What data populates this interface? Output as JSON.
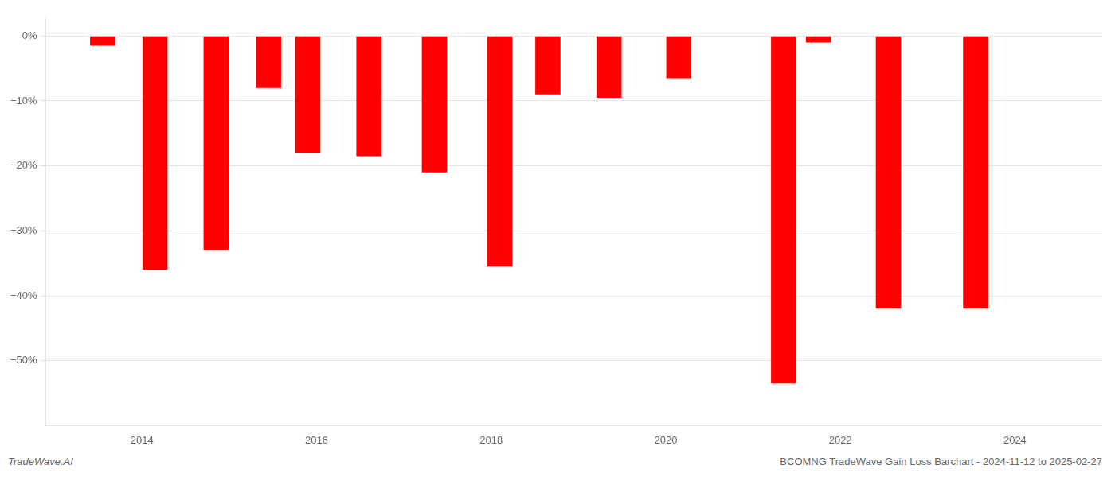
{
  "chart_data": {
    "type": "bar",
    "x": [
      2013.55,
      2014.15,
      2014.85,
      2015.45,
      2015.9,
      2016.6,
      2017.35,
      2018.1,
      2018.65,
      2019.35,
      2020.15,
      2021.35,
      2021.75,
      2022.55,
      2023.55
    ],
    "values": [
      -1.5,
      -36.0,
      -33.0,
      -8.0,
      -18.0,
      -18.5,
      -21.0,
      -35.5,
      -9.0,
      -9.5,
      -6.5,
      -53.5,
      -1.0,
      -42.0,
      -42.0
    ],
    "color": "#ff0000",
    "xlim": [
      2012.9,
      2025.0
    ],
    "xticks": [
      2014,
      2016,
      2018,
      2020,
      2022,
      2024
    ],
    "ylim": [
      -60,
      3
    ],
    "yticks": [
      {
        "value": 0,
        "label": "0%"
      },
      {
        "value": -10,
        "label": "−10%"
      },
      {
        "value": -20,
        "label": "−20%"
      },
      {
        "value": -30,
        "label": "−30%"
      },
      {
        "value": -40,
        "label": "−40%"
      },
      {
        "value": -50,
        "label": "−50%"
      }
    ],
    "grid": true,
    "annotations": [
      "TradeWave.AI",
      "BCOMNG TradeWave Gain Loss Barchart - 2024-11-12 to 2025-02-27"
    ]
  }
}
